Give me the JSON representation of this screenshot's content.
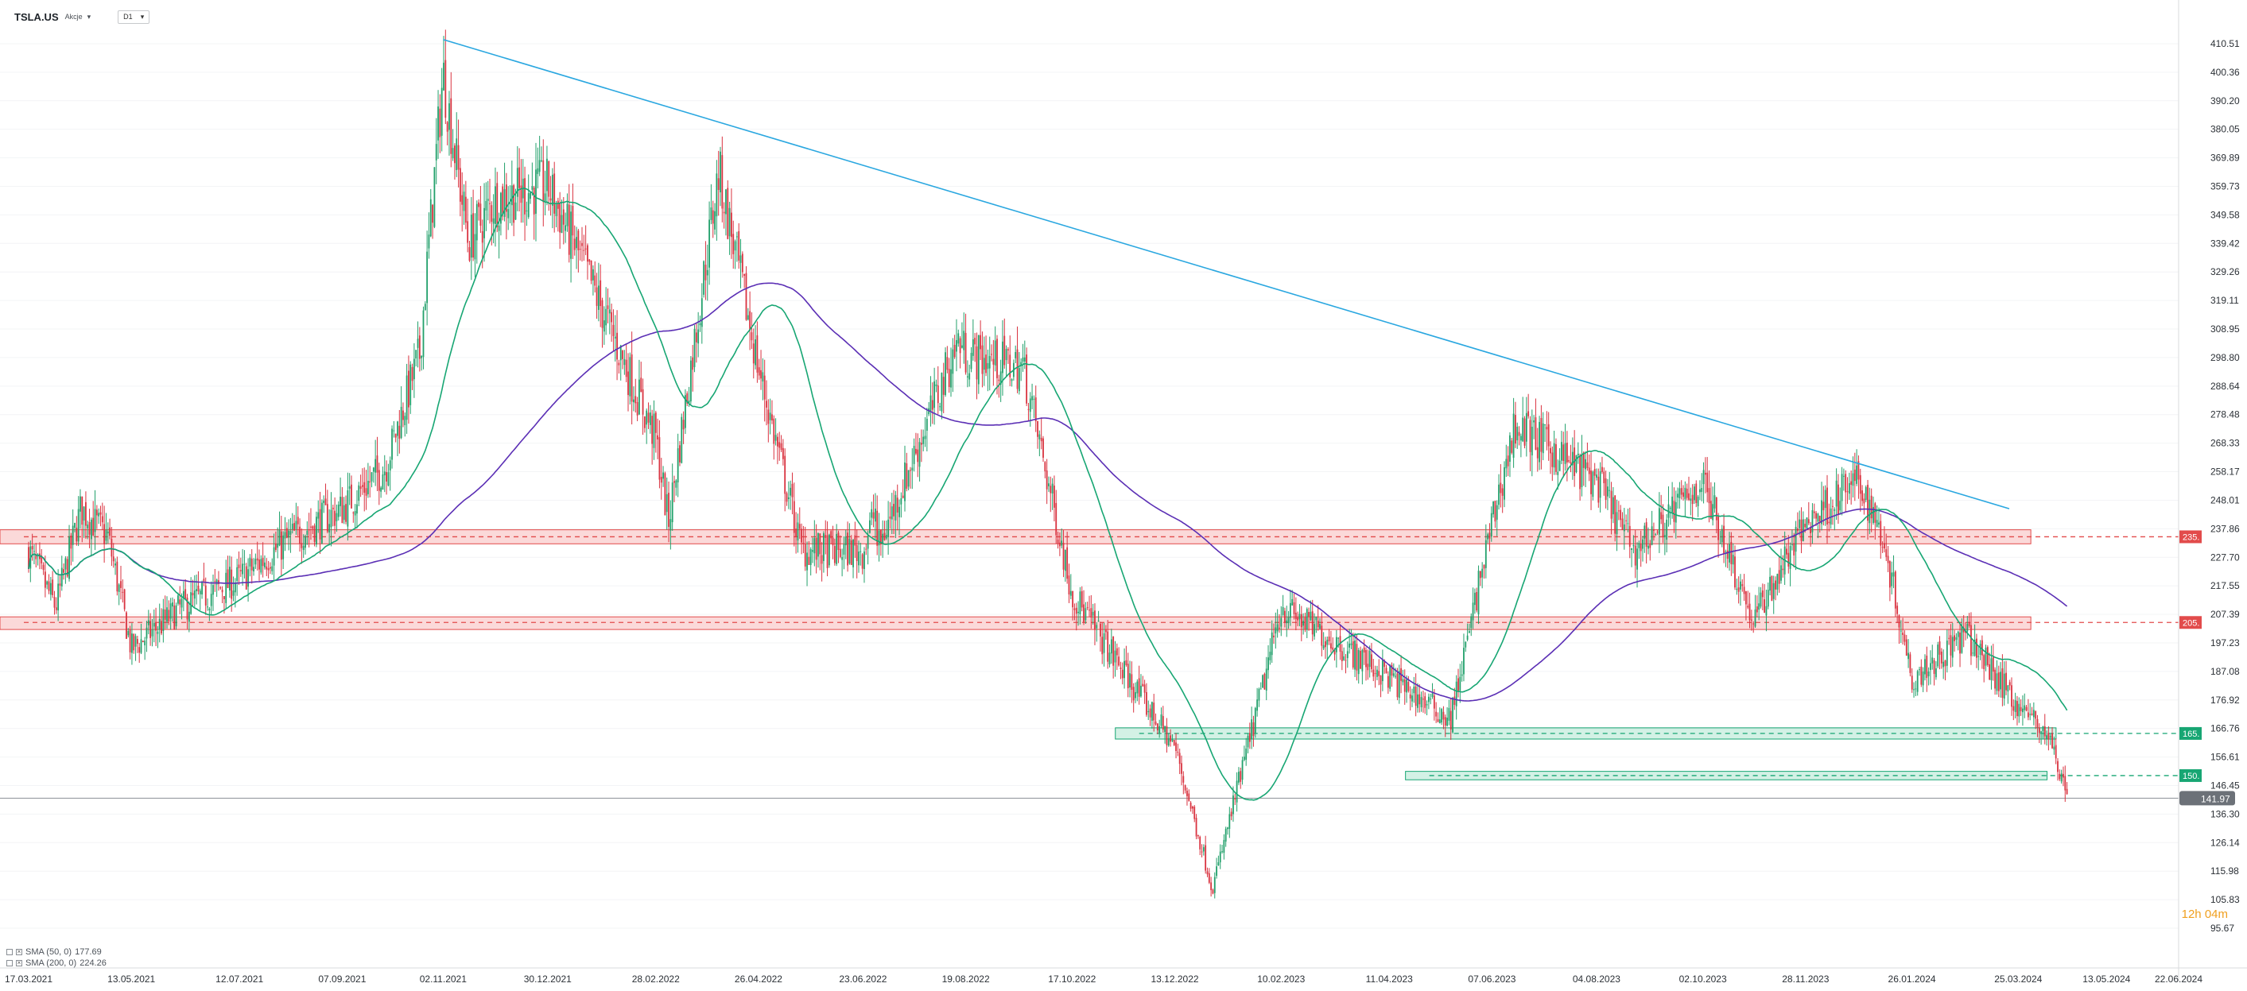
{
  "header": {
    "symbol": "TSLA.US",
    "symbol_type": "Akcje",
    "timeframe": "D1"
  },
  "indicators": [
    {
      "label": "SMA (50, 0)",
      "value": "177.69",
      "color": "#17a673"
    },
    {
      "label": "SMA (200, 0)",
      "value": "224.26",
      "color": "#5b2fb5"
    }
  ],
  "timer": "12h 04m",
  "chart_data": {
    "type": "candlestick",
    "title": "",
    "x_ticks": [
      "17.03.2021",
      "13.05.2021",
      "12.07.2021",
      "07.09.2021",
      "02.11.2021",
      "30.12.2021",
      "28.02.2022",
      "26.04.2022",
      "23.06.2022",
      "19.08.2022",
      "17.10.2022",
      "13.12.2022",
      "10.02.2023",
      "11.04.2023",
      "07.06.2023",
      "04.08.2023",
      "02.10.2023",
      "28.11.2023",
      "26.01.2024",
      "25.03.2024",
      "13.05.2024",
      "22.06.2024"
    ],
    "y_ticks": [
      "410.51",
      "400.36",
      "390.20",
      "380.05",
      "369.89",
      "359.73",
      "349.58",
      "339.42",
      "329.26",
      "319.11",
      "308.95",
      "298.80",
      "288.64",
      "278.48",
      "268.33",
      "258.17",
      "248.01",
      "237.86",
      "227.70",
      "217.55",
      "207.39",
      "197.23",
      "187.08",
      "176.92",
      "166.76",
      "156.61",
      "146.45",
      "136.30",
      "126.14",
      "115.98",
      "105.83",
      "95.67"
    ],
    "ylim": [
      95.67,
      410.51
    ],
    "last_price": "141.97",
    "price_path": [
      [
        "17.03.2021",
        230
      ],
      [
        "01.04.2021",
        210
      ],
      [
        "15.04.2021",
        245
      ],
      [
        "30.04.2021",
        235
      ],
      [
        "13.05.2021",
        195
      ],
      [
        "10.06.2021",
        210
      ],
      [
        "12.07.2021",
        220
      ],
      [
        "10.08.2021",
        235
      ],
      [
        "07.09.2021",
        245
      ],
      [
        "01.10.2021",
        260
      ],
      [
        "20.10.2021",
        300
      ],
      [
        "02.11.2021",
        400
      ],
      [
        "16.11.2021",
        340
      ],
      [
        "01.12.2021",
        355
      ],
      [
        "30.12.2021",
        360
      ],
      [
        "20.01.2022",
        330
      ],
      [
        "28.02.2022",
        270
      ],
      [
        "07.03.2022",
        240
      ],
      [
        "04.04.2022",
        365
      ],
      [
        "26.04.2022",
        295
      ],
      [
        "20.05.2022",
        230
      ],
      [
        "23.06.2022",
        230
      ],
      [
        "30.06.2022",
        245
      ],
      [
        "01.07.2022",
        230
      ],
      [
        "19.08.2022",
        300
      ],
      [
        "15.08.2022",
        305
      ],
      [
        "20.09.2022",
        295
      ],
      [
        "17.10.2022",
        215
      ],
      [
        "01.11.2022",
        200
      ],
      [
        "13.12.2022",
        160
      ],
      [
        "03.01.2023",
        110
      ],
      [
        "01.02.2023",
        185
      ],
      [
        "10.02.2023",
        210
      ],
      [
        "11.04.2023",
        185
      ],
      [
        "15.05.2023",
        170
      ],
      [
        "07.06.2023",
        240
      ],
      [
        "20.06.2023",
        275
      ],
      [
        "04.08.2023",
        255
      ],
      [
        "25.08.2023",
        230
      ],
      [
        "02.10.2023",
        255
      ],
      [
        "30.10.2023",
        205
      ],
      [
        "28.11.2023",
        240
      ],
      [
        "27.12.2023",
        255
      ],
      [
        "10.01.2024",
        235
      ],
      [
        "26.01.2024",
        185
      ],
      [
        "25.02.2024",
        200
      ],
      [
        "25.03.2024",
        175
      ],
      [
        "10.04.2024",
        165
      ],
      [
        "22.04.2024",
        142
      ]
    ],
    "sma50_color": "#17a673",
    "sma200_color": "#5b2fb5",
    "trendline_color": "#2aa7e0",
    "levels": [
      {
        "label": "235.",
        "color": "#e24b4b"
      },
      {
        "label": "205.",
        "color": "#e24b4b"
      },
      {
        "label": "165.",
        "color": "#17a673"
      },
      {
        "label": "150.",
        "color": "#17a673"
      }
    ]
  }
}
